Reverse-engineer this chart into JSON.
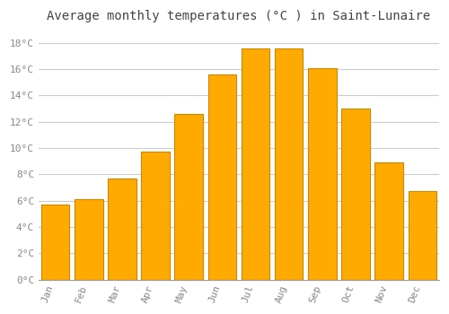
{
  "title": "Average monthly temperatures (°C ) in Saint-Lunaire",
  "months": [
    "Jan",
    "Feb",
    "Mar",
    "Apr",
    "May",
    "Jun",
    "Jul",
    "Aug",
    "Sep",
    "Oct",
    "Nov",
    "Dec"
  ],
  "values": [
    5.7,
    6.1,
    7.7,
    9.7,
    12.6,
    15.6,
    17.6,
    17.6,
    16.1,
    13.0,
    8.9,
    6.7
  ],
  "bar_color": "#FFAA00",
  "bar_edge_color": "#CC8800",
  "ylim": [
    0,
    19
  ],
  "yticks": [
    0,
    2,
    4,
    6,
    8,
    10,
    12,
    14,
    16,
    18
  ],
  "background_color": "#FFFFFF",
  "grid_color": "#CCCCCC",
  "title_fontsize": 10,
  "tick_fontsize": 8,
  "tick_label_color": "#888888",
  "title_color": "#444444",
  "bar_width": 0.85
}
